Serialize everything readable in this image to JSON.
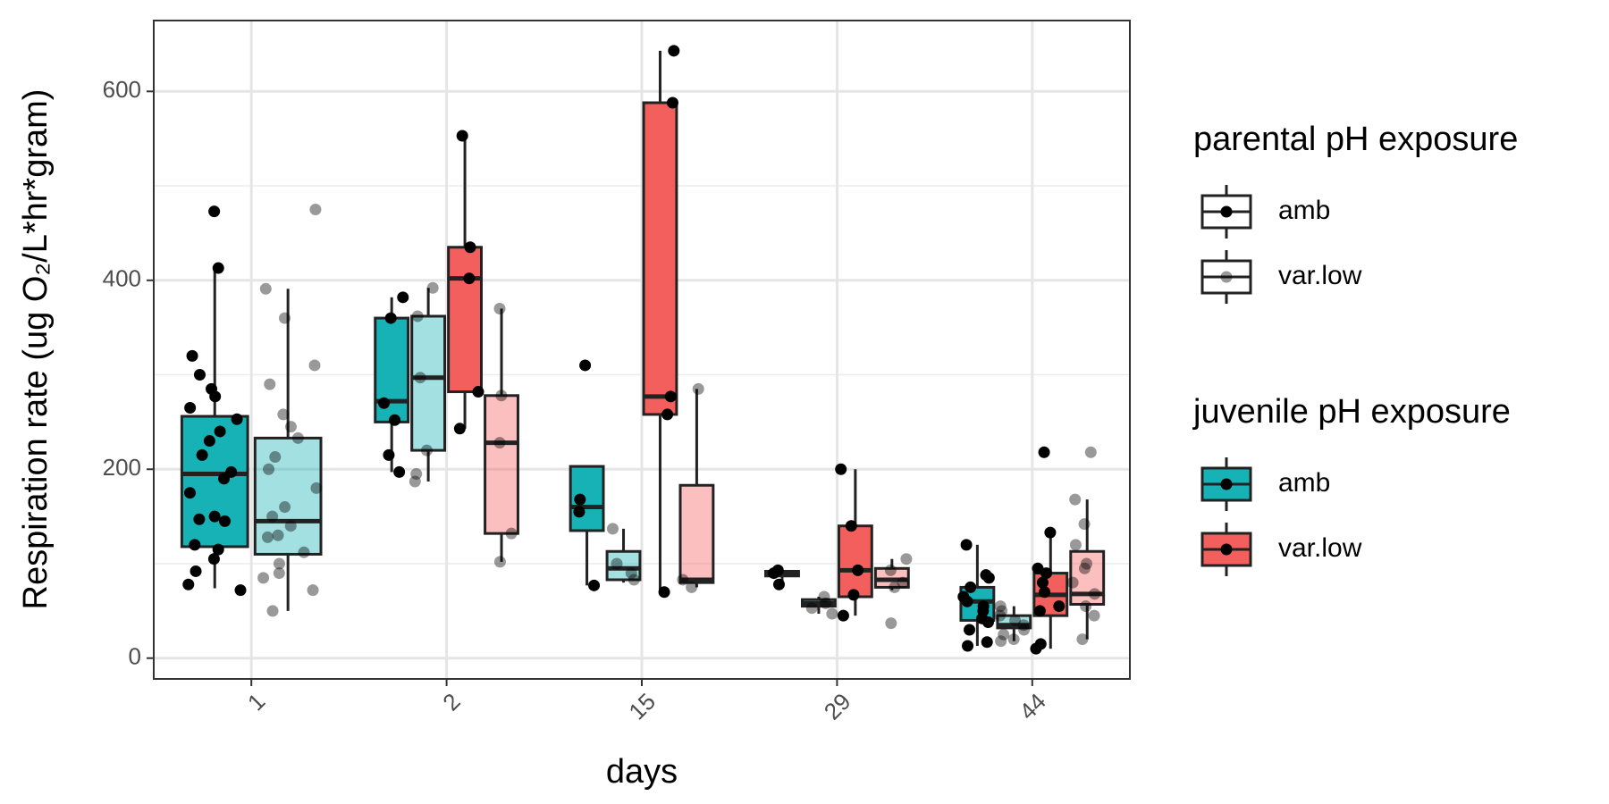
{
  "chart_data": {
    "type": "boxplot",
    "categories": [
      "1",
      "2",
      "15",
      "29",
      "44"
    ],
    "x_label": "days",
    "y_label": "Respiration rate (ug O₂/L*hr*gram)",
    "ylim": [
      -22,
      675
    ],
    "yticks": [
      0,
      200,
      400,
      600
    ],
    "minor_yticks": [
      100,
      300,
      500
    ],
    "grid": true,
    "legend_titles": {
      "parental": "parental pH exposure",
      "juvenile": "juvenile pH exposure"
    },
    "juvenile": [
      {
        "name": "amb",
        "color": "#17b2b6",
        "parental": [
          {
            "name": "amb",
            "fill_opacity": 1,
            "point_color": "#000000",
            "point_opacity": 1,
            "boxes": [
              {
                "low": 74,
                "q1": 118,
                "median": 195,
                "q3": 256,
                "high": 412,
                "points": [
                  473,
                  413,
                  320,
                  300,
                  285,
                  277,
                  265,
                  253,
                  240,
                  230,
                  215,
                  197,
                  190,
                  175,
                  150,
                  147,
                  145,
                  120,
                  115,
                  105,
                  92,
                  78,
                  72
                ]
              },
              {
                "low": 197,
                "q1": 250,
                "median": 272,
                "q3": 360,
                "high": 382,
                "points": [
                  382,
                  360,
                  270,
                  252,
                  215,
                  197
                ]
              },
              {
                "low": 77,
                "q1": 135,
                "median": 160,
                "q3": 203,
                "high": 203,
                "points": [
                  310,
                  168,
                  155,
                  77
                ]
              },
              {
                "low": 78,
                "q1": 87,
                "median": 90,
                "q3": 92,
                "high": 93,
                "points": [
                  93,
                  90,
                  78
                ]
              },
              {
                "low": 13,
                "q1": 40,
                "median": 60,
                "q3": 75,
                "high": 120,
                "points": [
                  120,
                  88,
                  85,
                  75,
                  65,
                  60,
                  55,
                  50,
                  42,
                  38,
                  30,
                  17,
                  13
                ]
              }
            ]
          },
          {
            "name": "var.low",
            "fill_opacity": 0.4,
            "point_color": "#000000",
            "point_opacity": 0.4,
            "boxes": [
              {
                "low": 50,
                "q1": 110,
                "median": 145,
                "q3": 233,
                "high": 391,
                "points": [
                  475,
                  391,
                  360,
                  310,
                  290,
                  258,
                  245,
                  233,
                  213,
                  200,
                  180,
                  160,
                  150,
                  140,
                  130,
                  128,
                  112,
                  100,
                  90,
                  85,
                  72,
                  50
                ]
              },
              {
                "low": 187,
                "q1": 220,
                "median": 297,
                "q3": 362,
                "high": 392,
                "points": [
                  392,
                  362,
                  297,
                  220,
                  195,
                  187
                ]
              },
              {
                "low": 80,
                "q1": 83,
                "median": 95,
                "q3": 113,
                "high": 137,
                "points": [
                  137,
                  100,
                  90,
                  83
                ]
              },
              {
                "low": 47,
                "q1": 55,
                "median": 58,
                "q3": 62,
                "high": 65,
                "points": [
                  65,
                  58,
                  53,
                  47
                ]
              },
              {
                "low": 18,
                "q1": 32,
                "median": 35,
                "q3": 45,
                "high": 55,
                "points": [
                  55,
                  50,
                  45,
                  40,
                  35,
                  30,
                  25,
                  20,
                  18
                ]
              }
            ]
          }
        ]
      },
      {
        "name": "var.low",
        "color": "#f25f5c",
        "parental": [
          {
            "name": "amb",
            "fill_opacity": 1,
            "point_color": "#000000",
            "point_opacity": 1,
            "boxes": [
              null,
              {
                "low": 243,
                "q1": 282,
                "median": 402,
                "q3": 435,
                "high": 553,
                "points": [
                  553,
                  435,
                  402,
                  282,
                  243
                ]
              },
              {
                "low": 70,
                "q1": 258,
                "median": 277,
                "q3": 588,
                "high": 643,
                "points": [
                  643,
                  588,
                  277,
                  258,
                  70
                ]
              },
              {
                "low": 45,
                "q1": 65,
                "median": 93,
                "q3": 140,
                "high": 200,
                "points": [
                  200,
                  140,
                  93,
                  67,
                  45
                ]
              },
              {
                "low": 10,
                "q1": 45,
                "median": 67,
                "q3": 90,
                "high": 133,
                "points": [
                  218,
                  133,
                  95,
                  90,
                  80,
                  70,
                  55,
                  50,
                  15,
                  10
                ]
              }
            ]
          },
          {
            "name": "var.low",
            "fill_opacity": 0.4,
            "point_color": "#000000",
            "point_opacity": 0.4,
            "boxes": [
              null,
              {
                "low": 102,
                "q1": 132,
                "median": 228,
                "q3": 278,
                "high": 370,
                "points": [
                  370,
                  278,
                  228,
                  132,
                  102
                ]
              },
              {
                "low": 75,
                "q1": 80,
                "median": 83,
                "q3": 183,
                "high": 285,
                "points": [
                  285,
                  83,
                  75
                ]
              },
              {
                "low": 72,
                "q1": 75,
                "median": 83,
                "q3": 95,
                "high": 105,
                "points": [
                  105,
                  93,
                  80,
                  75,
                  37
                ]
              },
              {
                "low": 20,
                "q1": 57,
                "median": 68,
                "q3": 113,
                "high": 168,
                "points": [
                  218,
                  168,
                  142,
                  120,
                  100,
                  95,
                  80,
                  68,
                  55,
                  45,
                  20
                ]
              }
            ]
          }
        ]
      }
    ]
  }
}
